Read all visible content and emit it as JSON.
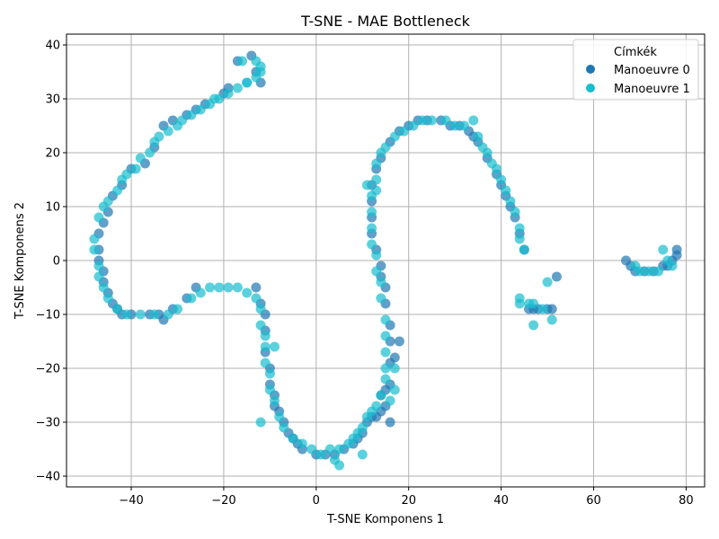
{
  "chart_data": {
    "type": "scatter",
    "title": "T-SNE - MAE Bottleneck",
    "xlabel": "T-SNE Komponens 1",
    "ylabel": "T-SNE Komponens 2",
    "xlim": [
      -54,
      84
    ],
    "ylim": [
      -42,
      42
    ],
    "xticks": [
      -40,
      -20,
      0,
      20,
      40,
      60,
      80
    ],
    "yticks": [
      -40,
      -30,
      -20,
      -10,
      0,
      10,
      20,
      30,
      40
    ],
    "grid": true,
    "legend": {
      "title": "Címkék",
      "placement": "top-right"
    },
    "series": [
      {
        "name": "Manoeuvre 0",
        "color": "#1f77b4",
        "points": [
          [
            -47,
            5
          ],
          [
            -47,
            2
          ],
          [
            -47,
            0
          ],
          [
            -46,
            -2
          ],
          [
            -46,
            -4
          ],
          [
            -45,
            -6
          ],
          [
            -44,
            -8
          ],
          [
            -43,
            -9
          ],
          [
            -42,
            -10
          ],
          [
            -40,
            -10
          ],
          [
            -36,
            -10
          ],
          [
            -34,
            -10
          ],
          [
            -33,
            -11
          ],
          [
            -31,
            -9
          ],
          [
            -28,
            -7
          ],
          [
            -26,
            -5
          ],
          [
            -46,
            7
          ],
          [
            -45,
            9
          ],
          [
            -44,
            12
          ],
          [
            -42,
            14
          ],
          [
            -40,
            17
          ],
          [
            -37,
            18
          ],
          [
            -35,
            21
          ],
          [
            -33,
            25
          ],
          [
            -31,
            26
          ],
          [
            -28,
            27
          ],
          [
            -26,
            28
          ],
          [
            -24,
            29
          ],
          [
            -20,
            31
          ],
          [
            -19,
            32
          ],
          [
            -17,
            37
          ],
          [
            -14,
            38
          ],
          [
            -13,
            35
          ],
          [
            -12,
            33
          ],
          [
            -13,
            -5
          ],
          [
            -12,
            -8
          ],
          [
            -11,
            -10
          ],
          [
            -11,
            -13
          ],
          [
            -11,
            -17
          ],
          [
            -10,
            -20
          ],
          [
            -10,
            -23
          ],
          [
            -9,
            -25
          ],
          [
            -9,
            -27
          ],
          [
            -8,
            -28
          ],
          [
            -7,
            -30
          ],
          [
            -6,
            -32
          ],
          [
            -5,
            -33
          ],
          [
            -4,
            -34
          ],
          [
            -3,
            -35
          ],
          [
            0,
            -36
          ],
          [
            2,
            -36
          ],
          [
            4,
            -36
          ],
          [
            6,
            -35
          ],
          [
            8,
            -34
          ],
          [
            9,
            -33
          ],
          [
            10,
            -32
          ],
          [
            11,
            -30
          ],
          [
            12,
            -29
          ],
          [
            13,
            -29
          ],
          [
            14,
            -28
          ],
          [
            15,
            -27
          ],
          [
            15,
            -24
          ],
          [
            16,
            -23
          ],
          [
            16,
            -19
          ],
          [
            16,
            -15
          ],
          [
            16,
            -12
          ],
          [
            15,
            -8
          ],
          [
            15,
            -5
          ],
          [
            14,
            -3
          ],
          [
            14,
            -1
          ],
          [
            13,
            2
          ],
          [
            12,
            5
          ],
          [
            12,
            8
          ],
          [
            12,
            11
          ],
          [
            12,
            14
          ],
          [
            13,
            17
          ],
          [
            14,
            19
          ],
          [
            16,
            22
          ],
          [
            18,
            24
          ],
          [
            20,
            25
          ],
          [
            22,
            26
          ],
          [
            24,
            26
          ],
          [
            27,
            26
          ],
          [
            29,
            25
          ],
          [
            31,
            25
          ],
          [
            33,
            24
          ],
          [
            34,
            23
          ],
          [
            35,
            22
          ],
          [
            37,
            19
          ],
          [
            39,
            16
          ],
          [
            40,
            14
          ],
          [
            41,
            12
          ],
          [
            42,
            10
          ],
          [
            43,
            8
          ],
          [
            44,
            5
          ],
          [
            45,
            2
          ],
          [
            46,
            -9
          ],
          [
            47,
            -9
          ],
          [
            48,
            -9
          ],
          [
            50,
            -9
          ],
          [
            51,
            -9
          ],
          [
            52,
            -3
          ],
          [
            67,
            0
          ],
          [
            68,
            -1
          ],
          [
            69,
            -2
          ],
          [
            71,
            -2
          ],
          [
            73,
            -2
          ],
          [
            75,
            -1
          ],
          [
            76,
            -1
          ],
          [
            77,
            0
          ],
          [
            78,
            1
          ],
          [
            78,
            2
          ],
          [
            18,
            -15
          ],
          [
            17,
            -18
          ],
          [
            14,
            -25
          ],
          [
            16,
            -30
          ]
        ]
      },
      {
        "name": "Manoeuvre 1",
        "color": "#17becf",
        "points": [
          [
            -48,
            4
          ],
          [
            -48,
            2
          ],
          [
            -47,
            -1
          ],
          [
            -47,
            -3
          ],
          [
            -46,
            -5
          ],
          [
            -45,
            -7
          ],
          [
            -43,
            -9
          ],
          [
            -41,
            -10
          ],
          [
            -38,
            -10
          ],
          [
            -35,
            -10
          ],
          [
            -32,
            -10
          ],
          [
            -30,
            -9
          ],
          [
            -27,
            -7
          ],
          [
            -25,
            -6
          ],
          [
            -23,
            -5
          ],
          [
            -21,
            -5
          ],
          [
            -19,
            -5
          ],
          [
            -17,
            -5
          ],
          [
            -15,
            -6
          ],
          [
            -13,
            -7
          ],
          [
            -47,
            8
          ],
          [
            -46,
            10
          ],
          [
            -45,
            11
          ],
          [
            -43,
            13
          ],
          [
            -42,
            15
          ],
          [
            -41,
            16
          ],
          [
            -39,
            17
          ],
          [
            -38,
            19
          ],
          [
            -36,
            20
          ],
          [
            -35,
            22
          ],
          [
            -34,
            23
          ],
          [
            -32,
            24
          ],
          [
            -30,
            25
          ],
          [
            -29,
            26
          ],
          [
            -27,
            27
          ],
          [
            -25,
            28
          ],
          [
            -23,
            29
          ],
          [
            -22,
            30
          ],
          [
            -21,
            30
          ],
          [
            -19,
            31
          ],
          [
            -17,
            32
          ],
          [
            -15,
            33
          ],
          [
            -13,
            34
          ],
          [
            -12,
            35
          ],
          [
            -12,
            36
          ],
          [
            -13,
            37
          ],
          [
            -16,
            37
          ],
          [
            -15,
            33
          ],
          [
            -12,
            -9
          ],
          [
            -12,
            -12
          ],
          [
            -11,
            -14
          ],
          [
            -11,
            -16
          ],
          [
            -11,
            -19
          ],
          [
            -10,
            -21
          ],
          [
            -10,
            -24
          ],
          [
            -9,
            -26
          ],
          [
            -8,
            -29
          ],
          [
            -7,
            -31
          ],
          [
            -5,
            -33
          ],
          [
            -3,
            -34
          ],
          [
            -1,
            -35
          ],
          [
            1,
            -36
          ],
          [
            3,
            -35
          ],
          [
            5,
            -35
          ],
          [
            7,
            -34
          ],
          [
            8,
            -33
          ],
          [
            9,
            -32
          ],
          [
            10,
            -31
          ],
          [
            11,
            -29
          ],
          [
            12,
            -28
          ],
          [
            13,
            -27
          ],
          [
            14,
            -25
          ],
          [
            15,
            -22
          ],
          [
            15,
            -20
          ],
          [
            15,
            -17
          ],
          [
            15,
            -14
          ],
          [
            15,
            -11
          ],
          [
            14,
            -7
          ],
          [
            14,
            -4
          ],
          [
            13,
            -2
          ],
          [
            13,
            1
          ],
          [
            12,
            3
          ],
          [
            12,
            6
          ],
          [
            12,
            9
          ],
          [
            12,
            12
          ],
          [
            13,
            15
          ],
          [
            13,
            18
          ],
          [
            14,
            20
          ],
          [
            15,
            21
          ],
          [
            17,
            23
          ],
          [
            19,
            24
          ],
          [
            21,
            25
          ],
          [
            23,
            26
          ],
          [
            25,
            26
          ],
          [
            28,
            26
          ],
          [
            30,
            25
          ],
          [
            32,
            25
          ],
          [
            34,
            26
          ],
          [
            35,
            23
          ],
          [
            36,
            21
          ],
          [
            37,
            20
          ],
          [
            38,
            18
          ],
          [
            39,
            17
          ],
          [
            40,
            15
          ],
          [
            41,
            13
          ],
          [
            42,
            11
          ],
          [
            43,
            9
          ],
          [
            44,
            6
          ],
          [
            44,
            4
          ],
          [
            45,
            2
          ],
          [
            44,
            -7
          ],
          [
            44,
            -8
          ],
          [
            46,
            -8
          ],
          [
            47,
            -8
          ],
          [
            49,
            -9
          ],
          [
            51,
            -11
          ],
          [
            47,
            -12
          ],
          [
            50,
            -4
          ],
          [
            69,
            -1
          ],
          [
            70,
            -2
          ],
          [
            72,
            -2
          ],
          [
            74,
            -2
          ],
          [
            75,
            2
          ],
          [
            76,
            0
          ],
          [
            77,
            -1
          ],
          [
            10,
            -36
          ],
          [
            5,
            -38
          ],
          [
            4,
            -37
          ],
          [
            -12,
            -30
          ],
          [
            -9,
            -16
          ],
          [
            11,
            14
          ],
          [
            13,
            13
          ],
          [
            17,
            -20
          ],
          [
            17,
            -24
          ],
          [
            16,
            -26
          ]
        ]
      }
    ]
  }
}
